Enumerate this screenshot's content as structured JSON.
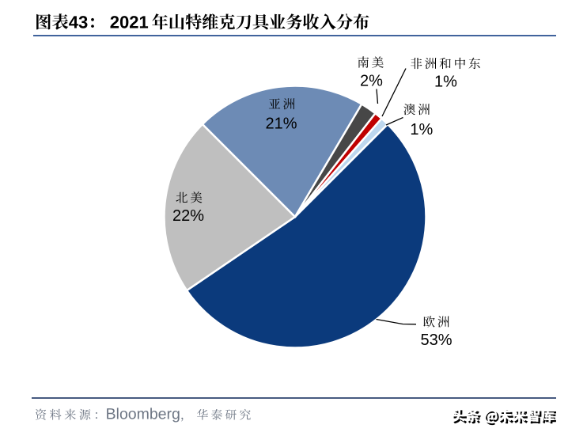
{
  "header": {
    "figure_label": "图表43：",
    "title": "2021 年山特维克刀具业务收入分布",
    "full_title": "图表43： 2021 年山特维克刀具业务收入分布"
  },
  "chart_data": {
    "type": "pie",
    "title": "2021 年山特维克刀具业务收入分布",
    "value_unit": "percent",
    "start_angle_deg": 45,
    "direction": "clockwise",
    "legend_position": "none",
    "slices": [
      {
        "key": "europe",
        "name": "欧洲",
        "value": 53,
        "label": "53%",
        "color": "#0B3A7C"
      },
      {
        "key": "north-america",
        "name": "北美",
        "value": 22,
        "label": "22%",
        "color": "#BFBFBF"
      },
      {
        "key": "asia",
        "name": "亚洲",
        "value": 21,
        "label": "21%",
        "color": "#6D8BB5"
      },
      {
        "key": "south-america",
        "name": "南美",
        "value": 2,
        "label": "2%",
        "color": "#474747"
      },
      {
        "key": "africa-mideast",
        "name": "非洲和中东",
        "value": 1,
        "label": "1%",
        "color": "#C00000"
      },
      {
        "key": "australia",
        "name": "澳洲",
        "value": 1,
        "label": "1%",
        "color": "#BDD7EE"
      }
    ]
  },
  "footer": {
    "source": "资料来源：Bloomberg，华泰研究"
  },
  "watermark": {
    "text": "头条 @未来智库"
  }
}
